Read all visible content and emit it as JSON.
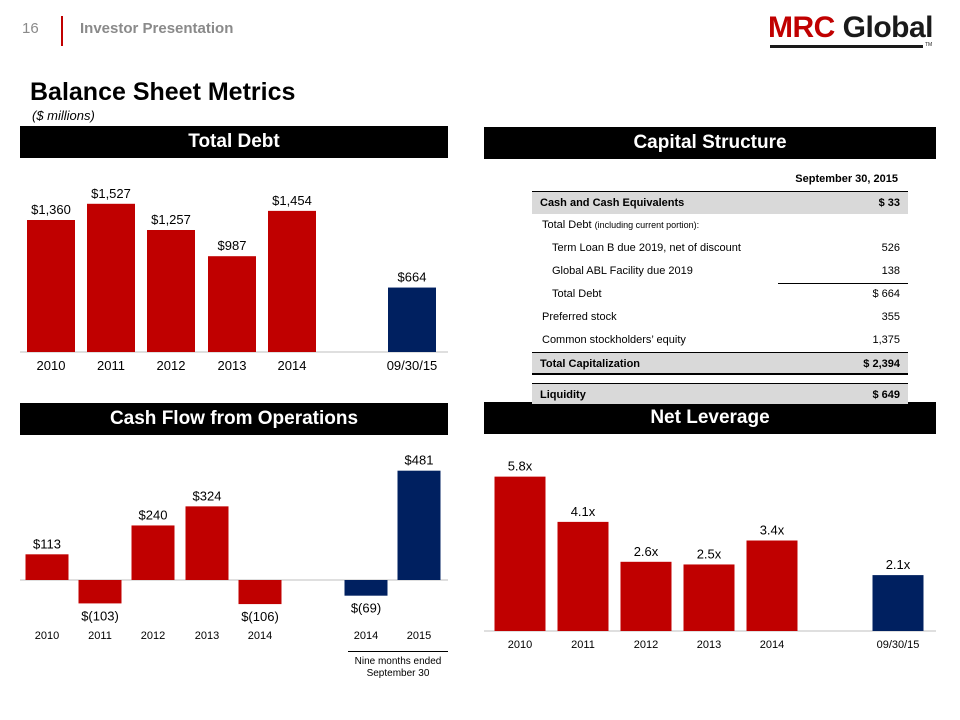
{
  "header": {
    "page_number": "16",
    "title": "Investor Presentation",
    "logo": {
      "text_mrc": "MRC",
      "text_global": "Global",
      "tm": "TM"
    }
  },
  "page": {
    "title": "Balance Sheet Metrics",
    "subtitle": "($ millions)"
  },
  "colors": {
    "red": "#c00000",
    "navy": "#002060",
    "banner": "#000000",
    "shade": "#d9d9d9"
  },
  "chart_data": [
    {
      "id": "total-debt",
      "type": "bar",
      "title": "Total Debt",
      "categories": [
        "2010",
        "2011",
        "2012",
        "2013",
        "2014",
        "09/30/15"
      ],
      "values": [
        1360,
        1527,
        1257,
        987,
        1454,
        664
      ],
      "labels": [
        "$1,360",
        "$1,527",
        "$1,257",
        "$987",
        "$1,454",
        "$664"
      ],
      "colors": [
        "#c00000",
        "#c00000",
        "#c00000",
        "#c00000",
        "#c00000",
        "#002060"
      ],
      "ylim": [
        0,
        1700
      ],
      "grid": false
    },
    {
      "id": "cash-flow-ops",
      "type": "bar",
      "title": "Cash Flow from Operations",
      "categories": [
        "2010",
        "2011",
        "2012",
        "2013",
        "2014",
        "2014",
        "2015"
      ],
      "values": [
        113,
        -103,
        240,
        324,
        -106,
        -69,
        481
      ],
      "labels": [
        "$113",
        "$(103)",
        "$240",
        "$324",
        "$(106)",
        "$(69)",
        "$481"
      ],
      "colors": [
        "#c00000",
        "#c00000",
        "#c00000",
        "#c00000",
        "#c00000",
        "#002060",
        "#002060"
      ],
      "ylim": [
        -200,
        550
      ],
      "footnote": "Nine months ended September 30",
      "grid": false
    },
    {
      "id": "net-leverage",
      "type": "bar",
      "title": "Net Leverage",
      "categories": [
        "2010",
        "2011",
        "2012",
        "2013",
        "2014",
        "09/30/15"
      ],
      "values": [
        5.8,
        4.1,
        2.6,
        2.5,
        3.4,
        2.1
      ],
      "labels": [
        "5.8x",
        "4.1x",
        "2.6x",
        "2.5x",
        "3.4x",
        "2.1x"
      ],
      "colors": [
        "#c00000",
        "#c00000",
        "#c00000",
        "#c00000",
        "#c00000",
        "#002060"
      ],
      "ylim": [
        0,
        6.5
      ],
      "grid": false
    },
    {
      "id": "capital-structure",
      "type": "table",
      "title": "Capital Structure",
      "column_header": "September 30, 2015",
      "rows": [
        {
          "label": "Cash and Cash Equivalents",
          "value": "$ 33"
        },
        {
          "label": "Total Debt",
          "note": "(including current portion):",
          "value": ""
        },
        {
          "label": "Term Loan B due 2019, net of discount",
          "value": "526"
        },
        {
          "label": "Global ABL Facility due 2019",
          "value": "138"
        },
        {
          "label": "Total Debt",
          "value": "$ 664"
        },
        {
          "label": "Preferred stock",
          "value": "355"
        },
        {
          "label": "Common stockholders’ equity",
          "value": "1,375"
        },
        {
          "label": "Total Capitalization",
          "value": "$ 2,394"
        },
        {
          "label": "Liquidity",
          "value": "$ 649"
        }
      ]
    }
  ]
}
